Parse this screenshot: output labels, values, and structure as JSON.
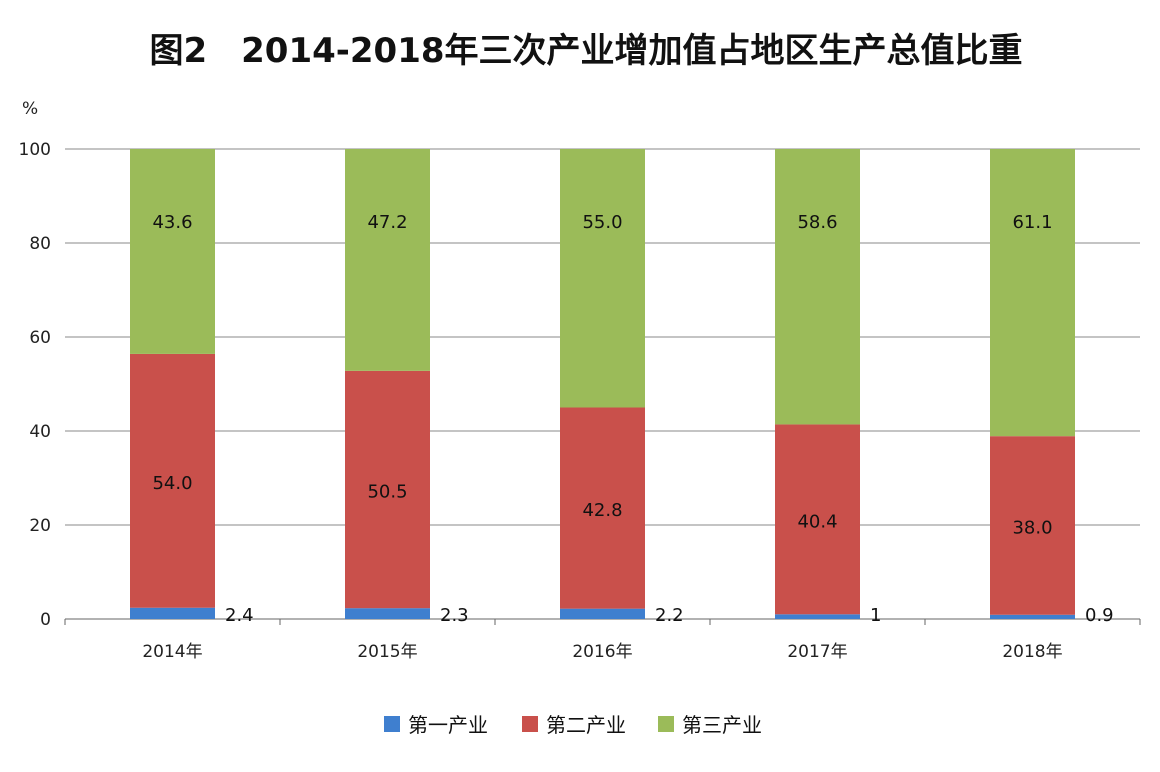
{
  "chart_data": {
    "type": "bar",
    "stacked": true,
    "title": "图2　2014-2018年三次产业增加值占地区生产总值比重",
    "ylabel": "%",
    "xlabel": "",
    "ylim": [
      0,
      100
    ],
    "yticks": [
      0,
      20,
      40,
      60,
      80,
      100
    ],
    "grid": true,
    "legend_position": "bottom",
    "categories": [
      "2014年",
      "2015年",
      "2016年",
      "2017年",
      "2018年"
    ],
    "series": [
      {
        "name": "第一产业",
        "color": "#3f7fcf",
        "values": [
          2.4,
          2.3,
          2.2,
          1,
          0.9
        ],
        "labels": [
          "2.4",
          "2.3",
          "2.2",
          "1",
          "0.9"
        ]
      },
      {
        "name": "第二产业",
        "color": "#c9504b",
        "values": [
          54.0,
          50.5,
          42.8,
          40.4,
          38.0
        ],
        "labels": [
          "54.0",
          "50.5",
          "42.8",
          "40.4",
          "38.0"
        ]
      },
      {
        "name": "第三产业",
        "color": "#9bbb59",
        "values": [
          43.6,
          47.2,
          55.0,
          58.6,
          61.1
        ],
        "labels": [
          "43.6",
          "47.2",
          "55.0",
          "58.6",
          "61.1"
        ]
      }
    ]
  }
}
